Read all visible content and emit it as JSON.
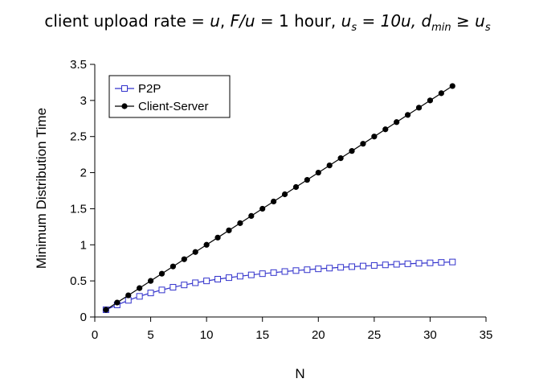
{
  "caption": {
    "prefix": "client upload rate = ",
    "u": "u",
    "sep1": ",  ",
    "ratio": "F/u",
    "eq_hour": " = 1 hour,  ",
    "us_base": "u",
    "us_sub": "s",
    "eq_10u": " = 10u,  ",
    "d_base": "d",
    "d_sub": "min",
    "geq": " ≥ ",
    "us2_base": "u",
    "us2_sub": "s"
  },
  "chart_data": {
    "type": "line",
    "xlabel": "N",
    "ylabel": "Minimum Distribution Time",
    "xlim": [
      0,
      35
    ],
    "ylim": [
      0,
      3.5
    ],
    "xticks": [
      "0",
      "5",
      "10",
      "15",
      "20",
      "25",
      "30",
      "35"
    ],
    "yticks": [
      "0",
      "0.5",
      "1",
      "1.5",
      "2",
      "2.5",
      "3",
      "3.5"
    ],
    "grid": false,
    "legend": "top-left",
    "x": [
      1,
      2,
      3,
      4,
      5,
      6,
      7,
      8,
      9,
      10,
      11,
      12,
      13,
      14,
      15,
      16,
      17,
      18,
      19,
      20,
      21,
      22,
      23,
      24,
      25,
      26,
      27,
      28,
      29,
      30,
      31,
      32
    ],
    "series": [
      {
        "name": "P2P",
        "color": "#3333cc",
        "marker": "hollow-square",
        "values": [
          0.1,
          0.167,
          0.231,
          0.286,
          0.333,
          0.375,
          0.412,
          0.444,
          0.474,
          0.5,
          0.524,
          0.545,
          0.565,
          0.583,
          0.6,
          0.615,
          0.63,
          0.643,
          0.655,
          0.667,
          0.677,
          0.688,
          0.697,
          0.706,
          0.714,
          0.722,
          0.73,
          0.737,
          0.744,
          0.75,
          0.756,
          0.762
        ]
      },
      {
        "name": "Client-Server",
        "color": "#000000",
        "marker": "filled-circle",
        "values": [
          0.1,
          0.2,
          0.3,
          0.4,
          0.5,
          0.6,
          0.7,
          0.8,
          0.9,
          1.0,
          1.1,
          1.2,
          1.3,
          1.4,
          1.5,
          1.6,
          1.7,
          1.8,
          1.9,
          2.0,
          2.1,
          2.2,
          2.3,
          2.4,
          2.5,
          2.6,
          2.7,
          2.8,
          2.9,
          3.0,
          3.1,
          3.2
        ]
      }
    ]
  }
}
